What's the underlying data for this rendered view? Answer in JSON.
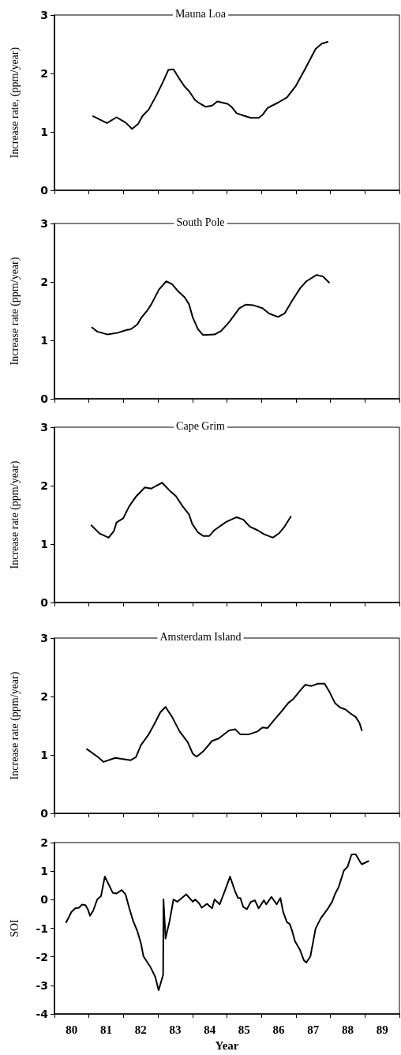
{
  "chart_data": [
    {
      "type": "line",
      "title": "Mauna Loa",
      "ylabel": "Increase rate, (ppm/year)",
      "color": "#000000",
      "marker": "none",
      "grid": false,
      "tick_labels": "y",
      "x": [
        81.12,
        81.52,
        81.8,
        82.06,
        82.25,
        82.43,
        82.55,
        82.73,
        82.96,
        83.15,
        83.3,
        83.45,
        83.63,
        83.78,
        83.9,
        84.08,
        84.23,
        84.38,
        84.57,
        84.72,
        85.02,
        85.13,
        85.28,
        85.47,
        85.69,
        85.92,
        86.03,
        86.18,
        86.48,
        86.74,
        87.0,
        87.27,
        87.57,
        87.75,
        87.92
      ],
      "values": [
        1.27,
        1.15,
        1.25,
        1.16,
        1.05,
        1.14,
        1.27,
        1.38,
        1.63,
        1.86,
        2.06,
        2.07,
        1.9,
        1.77,
        1.7,
        1.54,
        1.48,
        1.43,
        1.45,
        1.52,
        1.48,
        1.43,
        1.32,
        1.28,
        1.24,
        1.24,
        1.29,
        1.41,
        1.5,
        1.59,
        1.79,
        2.08,
        2.42,
        2.51,
        2.54
      ],
      "xlim": [
        80,
        90
      ],
      "xticks": [
        {
          "value": 80,
          "label": null
        },
        {
          "value": 81,
          "label": null
        },
        {
          "value": 82,
          "label": null
        },
        {
          "value": 83,
          "label": null
        },
        {
          "value": 84,
          "label": null
        },
        {
          "value": 85,
          "label": null
        },
        {
          "value": 86,
          "label": null
        },
        {
          "value": 87,
          "label": null
        },
        {
          "value": 88,
          "label": null
        },
        {
          "value": 89,
          "label": null
        },
        {
          "value": 90,
          "label": null
        }
      ],
      "ylim": [
        0,
        3
      ],
      "yticks": [
        0,
        1,
        2,
        3
      ]
    },
    {
      "type": "line",
      "title": "South Pole",
      "ylabel": "Increase rate (ppm/year)",
      "color": "#000000",
      "marker": "none",
      "grid": false,
      "tick_labels": "y",
      "x": [
        81.09,
        81.24,
        81.54,
        81.84,
        82.1,
        82.21,
        82.4,
        82.51,
        82.7,
        82.81,
        83.03,
        83.24,
        83.41,
        83.6,
        83.77,
        83.9,
        84.01,
        84.16,
        84.31,
        84.64,
        84.83,
        85.06,
        85.36,
        85.54,
        85.77,
        86.03,
        86.22,
        86.48,
        86.67,
        86.89,
        87.12,
        87.3,
        87.6,
        87.79,
        87.96
      ],
      "values": [
        1.22,
        1.15,
        1.1,
        1.13,
        1.18,
        1.19,
        1.27,
        1.38,
        1.52,
        1.62,
        1.87,
        2.01,
        1.96,
        1.83,
        1.74,
        1.62,
        1.39,
        1.19,
        1.09,
        1.1,
        1.16,
        1.31,
        1.55,
        1.61,
        1.6,
        1.55,
        1.46,
        1.4,
        1.46,
        1.68,
        1.89,
        2.01,
        2.12,
        2.09,
        1.99
      ],
      "xlim": [
        80,
        90
      ],
      "xticks": [
        {
          "value": 80,
          "label": null
        },
        {
          "value": 81,
          "label": null
        },
        {
          "value": 82,
          "label": null
        },
        {
          "value": 83,
          "label": null
        },
        {
          "value": 84,
          "label": null
        },
        {
          "value": 85,
          "label": null
        },
        {
          "value": 86,
          "label": null
        },
        {
          "value": 87,
          "label": null
        },
        {
          "value": 88,
          "label": null
        },
        {
          "value": 89,
          "label": null
        },
        {
          "value": 90,
          "label": null
        }
      ],
      "ylim": [
        0,
        3
      ],
      "yticks": [
        0,
        1,
        2,
        3
      ]
    },
    {
      "type": "line",
      "title": "Cape Grim",
      "ylabel": "Increase rate (ppm/year)",
      "color": "#000000",
      "marker": "none",
      "grid": false,
      "tick_labels": "y",
      "x": [
        81.07,
        81.31,
        81.57,
        81.72,
        81.8,
        81.99,
        82.17,
        82.36,
        82.62,
        82.81,
        82.96,
        83.12,
        83.33,
        83.52,
        83.71,
        83.9,
        83.99,
        84.16,
        84.31,
        84.49,
        84.64,
        84.98,
        85.28,
        85.47,
        85.66,
        85.88,
        86.07,
        86.33,
        86.52,
        86.67,
        86.85
      ],
      "values": [
        1.32,
        1.18,
        1.11,
        1.22,
        1.37,
        1.44,
        1.65,
        1.81,
        1.97,
        1.95,
        2.0,
        2.05,
        1.92,
        1.82,
        1.65,
        1.51,
        1.35,
        1.2,
        1.14,
        1.14,
        1.24,
        1.38,
        1.46,
        1.42,
        1.3,
        1.24,
        1.17,
        1.11,
        1.19,
        1.3,
        1.47
      ],
      "xlim": [
        80,
        90
      ],
      "xticks": [
        {
          "value": 80,
          "label": null
        },
        {
          "value": 81,
          "label": null
        },
        {
          "value": 82,
          "label": null
        },
        {
          "value": 83,
          "label": null
        },
        {
          "value": 84,
          "label": null
        },
        {
          "value": 85,
          "label": null
        },
        {
          "value": 86,
          "label": null
        },
        {
          "value": 87,
          "label": null
        },
        {
          "value": 88,
          "label": null
        },
        {
          "value": 89,
          "label": null
        },
        {
          "value": 90,
          "label": null
        }
      ],
      "ylim": [
        0,
        3
      ],
      "yticks": [
        0,
        1,
        2,
        3
      ]
    },
    {
      "type": "line",
      "title": "Amsterdam Island",
      "ylabel": "Increase rate (ppm/year)",
      "color": "#000000",
      "marker": "none",
      "grid": false,
      "tick_labels": "y",
      "x": [
        80.94,
        81.27,
        81.42,
        81.76,
        81.99,
        82.21,
        82.36,
        82.51,
        82.73,
        82.88,
        83.07,
        83.22,
        83.41,
        83.63,
        83.86,
        84.01,
        84.12,
        84.31,
        84.57,
        84.76,
        85.06,
        85.24,
        85.39,
        85.62,
        85.88,
        86.03,
        86.18,
        86.4,
        86.59,
        86.78,
        86.93,
        87.12,
        87.27,
        87.45,
        87.64,
        87.83,
        87.98,
        88.13,
        88.28,
        88.43,
        88.58,
        88.73,
        88.84,
        88.91
      ],
      "values": [
        1.1,
        0.96,
        0.88,
        0.95,
        0.93,
        0.91,
        0.96,
        1.17,
        1.35,
        1.51,
        1.73,
        1.82,
        1.65,
        1.4,
        1.22,
        1.02,
        0.97,
        1.06,
        1.24,
        1.28,
        1.42,
        1.44,
        1.35,
        1.35,
        1.4,
        1.47,
        1.46,
        1.62,
        1.75,
        1.89,
        1.96,
        2.1,
        2.2,
        2.18,
        2.22,
        2.22,
        2.07,
        1.89,
        1.81,
        1.78,
        1.71,
        1.65,
        1.55,
        1.42
      ],
      "xlim": [
        80,
        90
      ],
      "xticks": [
        {
          "value": 80,
          "label": null
        },
        {
          "value": 81,
          "label": null
        },
        {
          "value": 82,
          "label": null
        },
        {
          "value": 83,
          "label": null
        },
        {
          "value": 84,
          "label": null
        },
        {
          "value": 85,
          "label": null
        },
        {
          "value": 86,
          "label": null
        },
        {
          "value": 87,
          "label": null
        },
        {
          "value": 88,
          "label": null
        },
        {
          "value": 89,
          "label": null
        },
        {
          "value": 90,
          "label": null
        }
      ],
      "ylim": [
        0,
        3
      ],
      "yticks": [
        0,
        1,
        2,
        3
      ]
    },
    {
      "type": "line",
      "ylabel": "SOI",
      "xlabel": "Year",
      "color": "#000000",
      "marker": "none",
      "grid": false,
      "x": [
        80.34,
        80.49,
        80.6,
        80.71,
        80.8,
        80.9,
        80.97,
        81.03,
        81.12,
        81.24,
        81.35,
        81.46,
        81.69,
        81.8,
        81.95,
        82.06,
        82.17,
        82.28,
        82.4,
        82.51,
        82.58,
        82.77,
        82.92,
        83.02,
        83.15,
        83.16,
        83.2,
        83.22,
        83.26,
        83.33,
        83.45,
        83.56,
        83.82,
        84.01,
        84.08,
        84.19,
        84.27,
        84.42,
        84.57,
        84.64,
        84.79,
        84.94,
        85.09,
        85.24,
        85.32,
        85.39,
        85.47,
        85.58,
        85.69,
        85.81,
        85.92,
        86.07,
        86.14,
        86.29,
        86.44,
        86.55,
        86.63,
        86.74,
        86.82,
        86.89,
        86.97,
        87.12,
        87.23,
        87.3,
        87.42,
        87.57,
        87.72,
        87.91,
        88.05,
        88.13,
        88.24,
        88.39,
        88.5,
        88.61,
        88.73,
        88.88,
        88.91,
        89.1
      ],
      "values": [
        -0.79,
        -0.43,
        -0.3,
        -0.28,
        -0.17,
        -0.19,
        -0.34,
        -0.56,
        -0.39,
        0.01,
        0.13,
        0.81,
        0.24,
        0.22,
        0.34,
        0.19,
        -0.3,
        -0.74,
        -1.09,
        -1.54,
        -1.98,
        -2.33,
        -2.69,
        -3.17,
        -2.63,
        0.01,
        -0.87,
        -1.36,
        -1.14,
        -0.79,
        0.01,
        -0.07,
        0.19,
        -0.07,
        0.01,
        -0.12,
        -0.28,
        -0.14,
        -0.3,
        0.01,
        -0.16,
        0.31,
        0.81,
        0.28,
        0.06,
        0.06,
        -0.25,
        -0.33,
        -0.08,
        -0.02,
        -0.3,
        -0.02,
        -0.16,
        0.1,
        -0.16,
        0.06,
        -0.43,
        -0.79,
        -0.85,
        -1.09,
        -1.45,
        -1.76,
        -2.12,
        -2.2,
        -1.98,
        -1.01,
        -0.65,
        -0.34,
        -0.07,
        0.19,
        0.45,
        1.02,
        1.16,
        1.58,
        1.59,
        1.29,
        1.24,
        1.35
      ],
      "xlim": [
        80,
        90
      ],
      "xticks": [
        {
          "value": 80,
          "label": null
        },
        {
          "value": 80.5,
          "label": "80"
        },
        {
          "value": 81,
          "label": null
        },
        {
          "value": 81.5,
          "label": "81"
        },
        {
          "value": 82,
          "label": null
        },
        {
          "value": 82.5,
          "label": "82"
        },
        {
          "value": 83,
          "label": null
        },
        {
          "value": 83.5,
          "label": "83"
        },
        {
          "value": 84,
          "label": null
        },
        {
          "value": 84.5,
          "label": "84"
        },
        {
          "value": 85,
          "label": null
        },
        {
          "value": 85.5,
          "label": "85"
        },
        {
          "value": 86,
          "label": null
        },
        {
          "value": 86.5,
          "label": "86"
        },
        {
          "value": 87,
          "label": null
        },
        {
          "value": 87.5,
          "label": "87"
        },
        {
          "value": 88,
          "label": null
        },
        {
          "value": 88.5,
          "label": "88"
        },
        {
          "value": 89,
          "label": null
        },
        {
          "value": 89.5,
          "label": "89"
        },
        {
          "value": 90,
          "label": null
        }
      ],
      "ylim": [
        -4,
        2
      ],
      "yticks": [
        -4,
        -3,
        -2,
        -1,
        0,
        1,
        2
      ]
    }
  ]
}
